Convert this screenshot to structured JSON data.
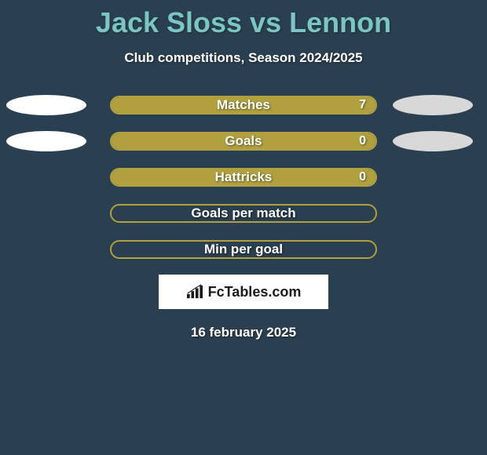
{
  "title": "Jack Sloss vs Lennon",
  "subtitle": "Club competitions, Season 2024/2025",
  "date": "16 february 2025",
  "logo_text": "FcTables.com",
  "colors": {
    "background": "#2a3f4f",
    "title": "#7bc5c5",
    "bar_fill": "#b0a040",
    "bar_border": "#b0a040",
    "ellipse_light": "#ffffff",
    "ellipse_dark": "#d8d8d8",
    "text": "#ffffff",
    "logo_bg": "#ffffff",
    "logo_text": "#1a1a1a"
  },
  "rows": [
    {
      "label": "Matches",
      "value": "7",
      "fill_pct": 100,
      "left_ellipse": "#ffffff",
      "right_ellipse": "#d8d8d8"
    },
    {
      "label": "Goals",
      "value": "0",
      "fill_pct": 100,
      "left_ellipse": "#ffffff",
      "right_ellipse": "#d8d8d8"
    },
    {
      "label": "Hattricks",
      "value": "0",
      "fill_pct": 100,
      "left_ellipse": null,
      "right_ellipse": null
    },
    {
      "label": "Goals per match",
      "value": "",
      "fill_pct": 0,
      "left_ellipse": null,
      "right_ellipse": null
    },
    {
      "label": "Min per goal",
      "value": "",
      "fill_pct": 0,
      "left_ellipse": null,
      "right_ellipse": null
    }
  ]
}
